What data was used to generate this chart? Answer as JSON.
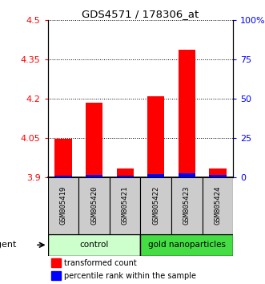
{
  "title": "GDS4571 / 178306_at",
  "samples": [
    "GSM805419",
    "GSM805420",
    "GSM805421",
    "GSM805422",
    "GSM805423",
    "GSM805424"
  ],
  "red_values": [
    4.048,
    4.185,
    3.935,
    4.21,
    4.385,
    3.935
  ],
  "blue_percentiles": [
    7,
    9,
    5,
    11,
    14,
    8
  ],
  "y_min": 3.9,
  "y_max": 4.5,
  "y_ticks_left": [
    3.9,
    4.05,
    4.2,
    4.35,
    4.5
  ],
  "y_tick_labels_left": [
    "3.9",
    "4.05",
    "4.2",
    "4.35",
    "4.5"
  ],
  "y2_percents": [
    0,
    25,
    50,
    75,
    100
  ],
  "y2_tick_labels": [
    "0",
    "25",
    "50",
    "75",
    "100%"
  ],
  "groups": [
    {
      "label": "control",
      "indices": [
        0,
        1,
        2
      ],
      "color": "#ccffcc"
    },
    {
      "label": "gold nanoparticles",
      "indices": [
        3,
        4,
        5
      ],
      "color": "#44dd44"
    }
  ],
  "agent_label": "agent",
  "red_legend": "transformed count",
  "blue_legend": "percentile rank within the sample",
  "bar_width": 0.55,
  "bar_base": 3.9,
  "sample_box_color": "#cccccc",
  "title_fontsize": 9.5
}
